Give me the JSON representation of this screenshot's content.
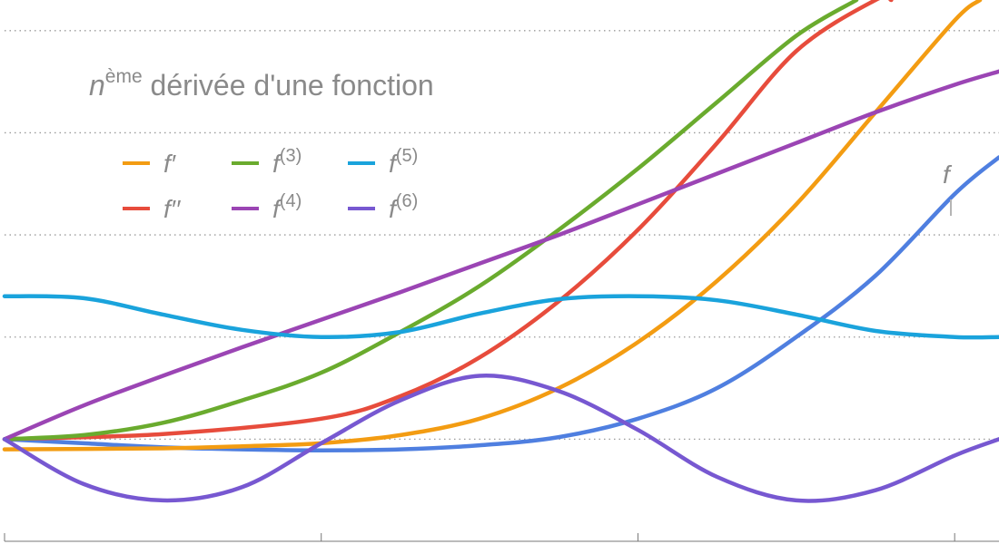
{
  "chart_data": {
    "type": "line",
    "title_prefix": "n",
    "title_super": "ème",
    "title_rest": " dérivée d'une fonction",
    "xlim": [
      0,
      3.14
    ],
    "ylim": [
      -1,
      4.3
    ],
    "grid": "horizontal-dotted",
    "legend_placement": "top-left",
    "legend": [
      {
        "base": "f",
        "sup": "′",
        "color": "#f39c12"
      },
      {
        "base": "f",
        "sup": "′′",
        "color": "#e74c3c"
      },
      {
        "base": "f",
        "sup": "(3)",
        "color": "#6aab2e"
      },
      {
        "base": "f",
        "sup": "(4)",
        "color": "#9b45b4"
      },
      {
        "base": "f",
        "sup": "(5)",
        "color": "#1aa3dc"
      },
      {
        "base": "f",
        "sup": "(6)",
        "color": "#7758d1"
      }
    ],
    "inline_label": {
      "text": "f",
      "color": "#4f7fe0"
    },
    "series": [
      {
        "key": "f",
        "color": "#4f7fe0",
        "x": [
          0,
          0.25,
          0.5,
          0.75,
          1.0,
          1.25,
          1.5,
          1.75,
          2.0,
          2.25,
          2.5,
          2.75,
          3.0,
          3.14
        ],
        "y": [
          0,
          -0.04,
          -0.08,
          -0.1,
          -0.11,
          -0.1,
          -0.06,
          0.02,
          0.2,
          0.5,
          1.0,
          1.6,
          2.4,
          2.76
        ]
      },
      {
        "key": "f1",
        "color": "#f39c12",
        "x": [
          0,
          0.5,
          0.75,
          1.0,
          1.25,
          1.5,
          1.75,
          2.0,
          2.25,
          2.5,
          2.75,
          3.0,
          3.08
        ],
        "y": [
          -0.1,
          -0.09,
          -0.07,
          -0.04,
          0.04,
          0.2,
          0.5,
          0.95,
          1.55,
          2.3,
          3.2,
          4.1,
          4.3
        ]
      },
      {
        "key": "f2",
        "color": "#e74c3c",
        "x": [
          0,
          0.5,
          1.0,
          1.25,
          1.5,
          1.75,
          2.0,
          2.25,
          2.5,
          2.75,
          2.8
        ],
        "y": [
          0,
          0.05,
          0.2,
          0.42,
          0.8,
          1.35,
          2.05,
          2.9,
          3.8,
          4.3,
          4.3
        ]
      },
      {
        "key": "f3",
        "color": "#6aab2e",
        "x": [
          0,
          0.25,
          0.5,
          0.75,
          1.0,
          1.25,
          1.5,
          1.75,
          2.0,
          2.25,
          2.5,
          2.69
        ],
        "y": [
          0,
          0.04,
          0.16,
          0.38,
          0.65,
          1.05,
          1.5,
          2.05,
          2.65,
          3.3,
          3.95,
          4.3
        ]
      },
      {
        "key": "f4",
        "color": "#9b45b4",
        "x": [
          0,
          0.25,
          0.5,
          0.75,
          1.0,
          1.25,
          1.5,
          1.75,
          2.0,
          2.25,
          2.5,
          2.75,
          3.0,
          3.14
        ],
        "y": [
          0,
          0.33,
          0.62,
          0.9,
          1.17,
          1.44,
          1.72,
          2.0,
          2.3,
          2.6,
          2.9,
          3.2,
          3.47,
          3.6
        ]
      },
      {
        "key": "f5",
        "color": "#1aa3dc",
        "x": [
          0,
          0.25,
          0.5,
          0.75,
          1.0,
          1.25,
          1.5,
          1.75,
          2.0,
          2.25,
          2.5,
          2.75,
          3.0,
          3.14
        ],
        "y": [
          1.4,
          1.38,
          1.22,
          1.07,
          1.0,
          1.05,
          1.23,
          1.37,
          1.4,
          1.36,
          1.22,
          1.06,
          1.0,
          1.0
        ]
      },
      {
        "key": "f6",
        "color": "#7758d1",
        "x": [
          0,
          0.25,
          0.5,
          0.75,
          1.0,
          1.25,
          1.5,
          1.75,
          2.0,
          2.25,
          2.5,
          2.75,
          3.0,
          3.14
        ],
        "y": [
          0,
          -0.44,
          -0.6,
          -0.47,
          -0.04,
          0.38,
          0.62,
          0.47,
          0.09,
          -0.37,
          -0.6,
          -0.5,
          -0.16,
          0.0
        ]
      }
    ]
  }
}
